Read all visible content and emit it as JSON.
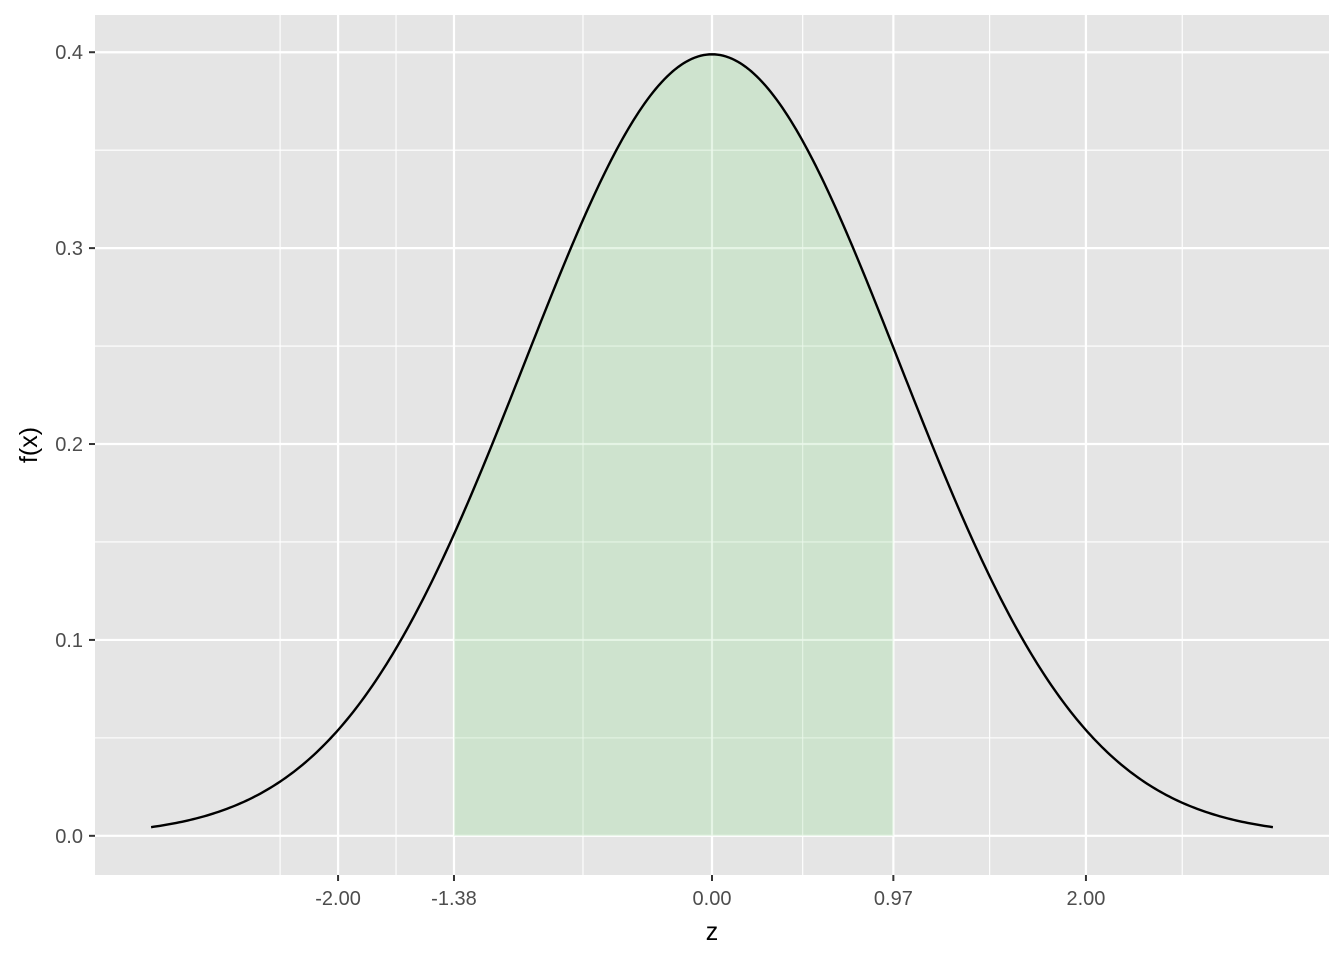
{
  "chart_data": {
    "type": "area",
    "xlabel": "z",
    "ylabel": "f(x)",
    "curve": {
      "function": "standard normal density",
      "mean": 0,
      "sd": 1,
      "x_range": [
        -3,
        3
      ],
      "color": "#000000"
    },
    "shaded_region": {
      "from": -1.38,
      "to": 0.97,
      "color": "#b2dfb2"
    },
    "x_ticks": [
      -2.0,
      -1.38,
      0.0,
      0.97,
      2.0
    ],
    "x_tick_labels": [
      "-2.00",
      "-1.38",
      "0.00",
      "0.97",
      "2.00"
    ],
    "y_ticks": [
      0.0,
      0.1,
      0.2,
      0.3,
      0.4
    ],
    "y_tick_labels": [
      "0.0",
      "0.1",
      "0.2",
      "0.3",
      "0.4"
    ],
    "xlim": [
      -3.3,
      3.3
    ],
    "ylim": [
      -0.02,
      0.419
    ],
    "grid": true,
    "panel_background": "#e5e5e5",
    "grid_color": "#ffffff"
  }
}
